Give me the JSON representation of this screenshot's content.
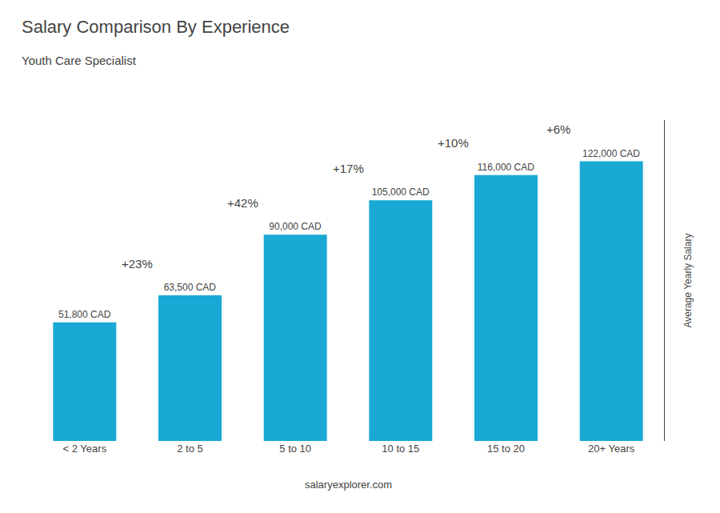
{
  "chart_data": {
    "type": "bar",
    "title": "Salary Comparison By Experience",
    "subtitle": "Youth Care Specialist",
    "categories": [
      "< 2 Years",
      "2 to 5",
      "5 to 10",
      "10 to 15",
      "15 to 20",
      "20+ Years"
    ],
    "values": [
      51800,
      63500,
      90000,
      105000,
      116000,
      122000
    ],
    "value_labels": [
      "51,800 CAD",
      "63,500 CAD",
      "90,000 CAD",
      "105,000 CAD",
      "116,000 CAD",
      "122,000 CAD"
    ],
    "data_labels": true,
    "color": "#1aa8d4",
    "ylabel": "Average Yearly Salary",
    "ylim": [
      0,
      140000
    ],
    "annotations": [
      "+23%",
      "+42%",
      "+17%",
      "+10%",
      "+6%"
    ],
    "footer": "salaryexplorer.com",
    "tick_labels": "x",
    "grid": false
  }
}
